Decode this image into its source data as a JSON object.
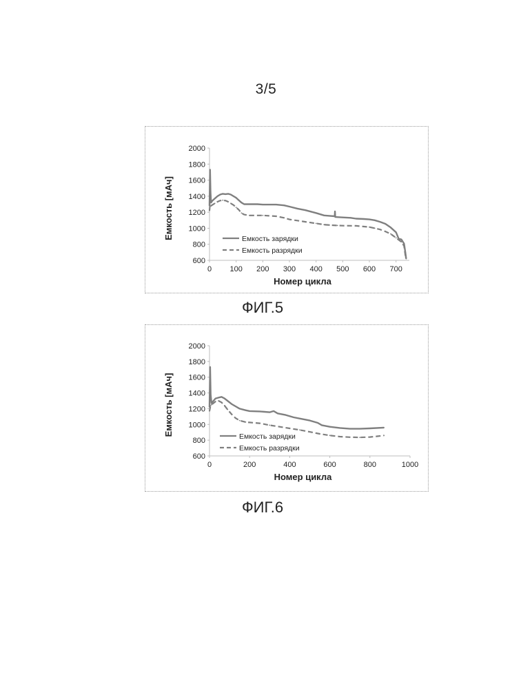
{
  "page": {
    "number": "3/5"
  },
  "figures": [
    {
      "caption": "ФИГ.5"
    },
    {
      "caption": "ФИГ.6"
    }
  ],
  "chart_data": [
    {
      "type": "line",
      "title": "",
      "xlabel": "Номер цикла",
      "ylabel": "Емкость [мАч]",
      "xlim": [
        0,
        750
      ],
      "ylim": [
        600,
        2000
      ],
      "xticks": [
        0,
        100,
        200,
        300,
        400,
        500,
        600,
        700
      ],
      "yticks": [
        600,
        800,
        1000,
        1200,
        1400,
        1600,
        1800,
        2000
      ],
      "legend_position": "lower-left",
      "series": [
        {
          "name": "Емкость зарядки",
          "style": "solid",
          "color": "#7f7f7f",
          "points": [
            [
              0,
              1280
            ],
            [
              2,
              1730
            ],
            [
              4,
              1450
            ],
            [
              6,
              1320
            ],
            [
              10,
              1340
            ],
            [
              20,
              1370
            ],
            [
              30,
              1400
            ],
            [
              40,
              1420
            ],
            [
              50,
              1430
            ],
            [
              60,
              1425
            ],
            [
              70,
              1430
            ],
            [
              80,
              1420
            ],
            [
              90,
              1400
            ],
            [
              100,
              1380
            ],
            [
              110,
              1350
            ],
            [
              120,
              1320
            ],
            [
              130,
              1300
            ],
            [
              150,
              1300
            ],
            [
              180,
              1300
            ],
            [
              200,
              1295
            ],
            [
              250,
              1295
            ],
            [
              280,
              1285
            ],
            [
              300,
              1270
            ],
            [
              330,
              1245
            ],
            [
              360,
              1225
            ],
            [
              400,
              1190
            ],
            [
              430,
              1160
            ],
            [
              450,
              1155
            ],
            [
              470,
              1150
            ],
            [
              471,
              1210
            ],
            [
              472,
              1140
            ],
            [
              500,
              1135
            ],
            [
              530,
              1130
            ],
            [
              550,
              1120
            ],
            [
              580,
              1115
            ],
            [
              600,
              1110
            ],
            [
              620,
              1100
            ],
            [
              640,
              1080
            ],
            [
              660,
              1055
            ],
            [
              680,
              1010
            ],
            [
              700,
              950
            ],
            [
              710,
              870
            ],
            [
              720,
              860
            ],
            [
              730,
              810
            ],
            [
              735,
              700
            ],
            [
              738,
              620
            ]
          ]
        },
        {
          "name": "Емкость разрядки",
          "style": "dashed",
          "color": "#7f7f7f",
          "points": [
            [
              0,
              1220
            ],
            [
              2,
              1300
            ],
            [
              6,
              1280
            ],
            [
              10,
              1290
            ],
            [
              20,
              1310
            ],
            [
              30,
              1330
            ],
            [
              40,
              1345
            ],
            [
              50,
              1350
            ],
            [
              60,
              1345
            ],
            [
              70,
              1330
            ],
            [
              80,
              1310
            ],
            [
              90,
              1290
            ],
            [
              100,
              1260
            ],
            [
              110,
              1230
            ],
            [
              120,
              1190
            ],
            [
              130,
              1170
            ],
            [
              150,
              1160
            ],
            [
              200,
              1160
            ],
            [
              250,
              1150
            ],
            [
              280,
              1130
            ],
            [
              300,
              1110
            ],
            [
              350,
              1085
            ],
            [
              400,
              1060
            ],
            [
              430,
              1045
            ],
            [
              450,
              1040
            ],
            [
              480,
              1035
            ],
            [
              500,
              1032
            ],
            [
              550,
              1030
            ],
            [
              600,
              1015
            ],
            [
              620,
              1000
            ],
            [
              640,
              985
            ],
            [
              660,
              960
            ],
            [
              680,
              930
            ],
            [
              700,
              880
            ],
            [
              720,
              830
            ],
            [
              730,
              780
            ],
            [
              736,
              640
            ]
          ]
        }
      ]
    },
    {
      "type": "line",
      "title": "",
      "xlabel": "Номер цикла",
      "ylabel": "Емкость [мАч]",
      "xlim": [
        0,
        1000
      ],
      "ylim": [
        600,
        2000
      ],
      "xticks": [
        0,
        200,
        400,
        600,
        800,
        1000
      ],
      "yticks": [
        600,
        800,
        1000,
        1200,
        1400,
        1600,
        1800,
        2000
      ],
      "legend_position": "lower-left",
      "series": [
        {
          "name": "Емкость зарядки",
          "style": "solid",
          "color": "#7f7f7f",
          "points": [
            [
              0,
              1220
            ],
            [
              3,
              1730
            ],
            [
              6,
              1380
            ],
            [
              10,
              1270
            ],
            [
              20,
              1300
            ],
            [
              30,
              1330
            ],
            [
              45,
              1340
            ],
            [
              60,
              1350
            ],
            [
              75,
              1330
            ],
            [
              90,
              1300
            ],
            [
              110,
              1260
            ],
            [
              130,
              1230
            ],
            [
              150,
              1200
            ],
            [
              180,
              1180
            ],
            [
              200,
              1170
            ],
            [
              250,
              1165
            ],
            [
              300,
              1155
            ],
            [
              320,
              1170
            ],
            [
              340,
              1140
            ],
            [
              380,
              1120
            ],
            [
              420,
              1090
            ],
            [
              460,
              1070
            ],
            [
              500,
              1050
            ],
            [
              540,
              1020
            ],
            [
              560,
              990
            ],
            [
              600,
              970
            ],
            [
              650,
              955
            ],
            [
              700,
              945
            ],
            [
              750,
              945
            ],
            [
              800,
              950
            ],
            [
              870,
              960
            ]
          ]
        },
        {
          "name": "Емкость разрядки",
          "style": "dashed",
          "color": "#7f7f7f",
          "points": [
            [
              0,
              1170
            ],
            [
              5,
              1240
            ],
            [
              10,
              1250
            ],
            [
              20,
              1270
            ],
            [
              30,
              1290
            ],
            [
              45,
              1300
            ],
            [
              60,
              1280
            ],
            [
              75,
              1240
            ],
            [
              90,
              1190
            ],
            [
              110,
              1130
            ],
            [
              130,
              1080
            ],
            [
              150,
              1050
            ],
            [
              180,
              1030
            ],
            [
              200,
              1025
            ],
            [
              250,
              1015
            ],
            [
              300,
              990
            ],
            [
              350,
              970
            ],
            [
              400,
              950
            ],
            [
              450,
              930
            ],
            [
              500,
              905
            ],
            [
              550,
              880
            ],
            [
              600,
              860
            ],
            [
              650,
              845
            ],
            [
              700,
              838
            ],
            [
              750,
              835
            ],
            [
              800,
              840
            ],
            [
              840,
              850
            ],
            [
              870,
              860
            ]
          ]
        }
      ]
    }
  ]
}
